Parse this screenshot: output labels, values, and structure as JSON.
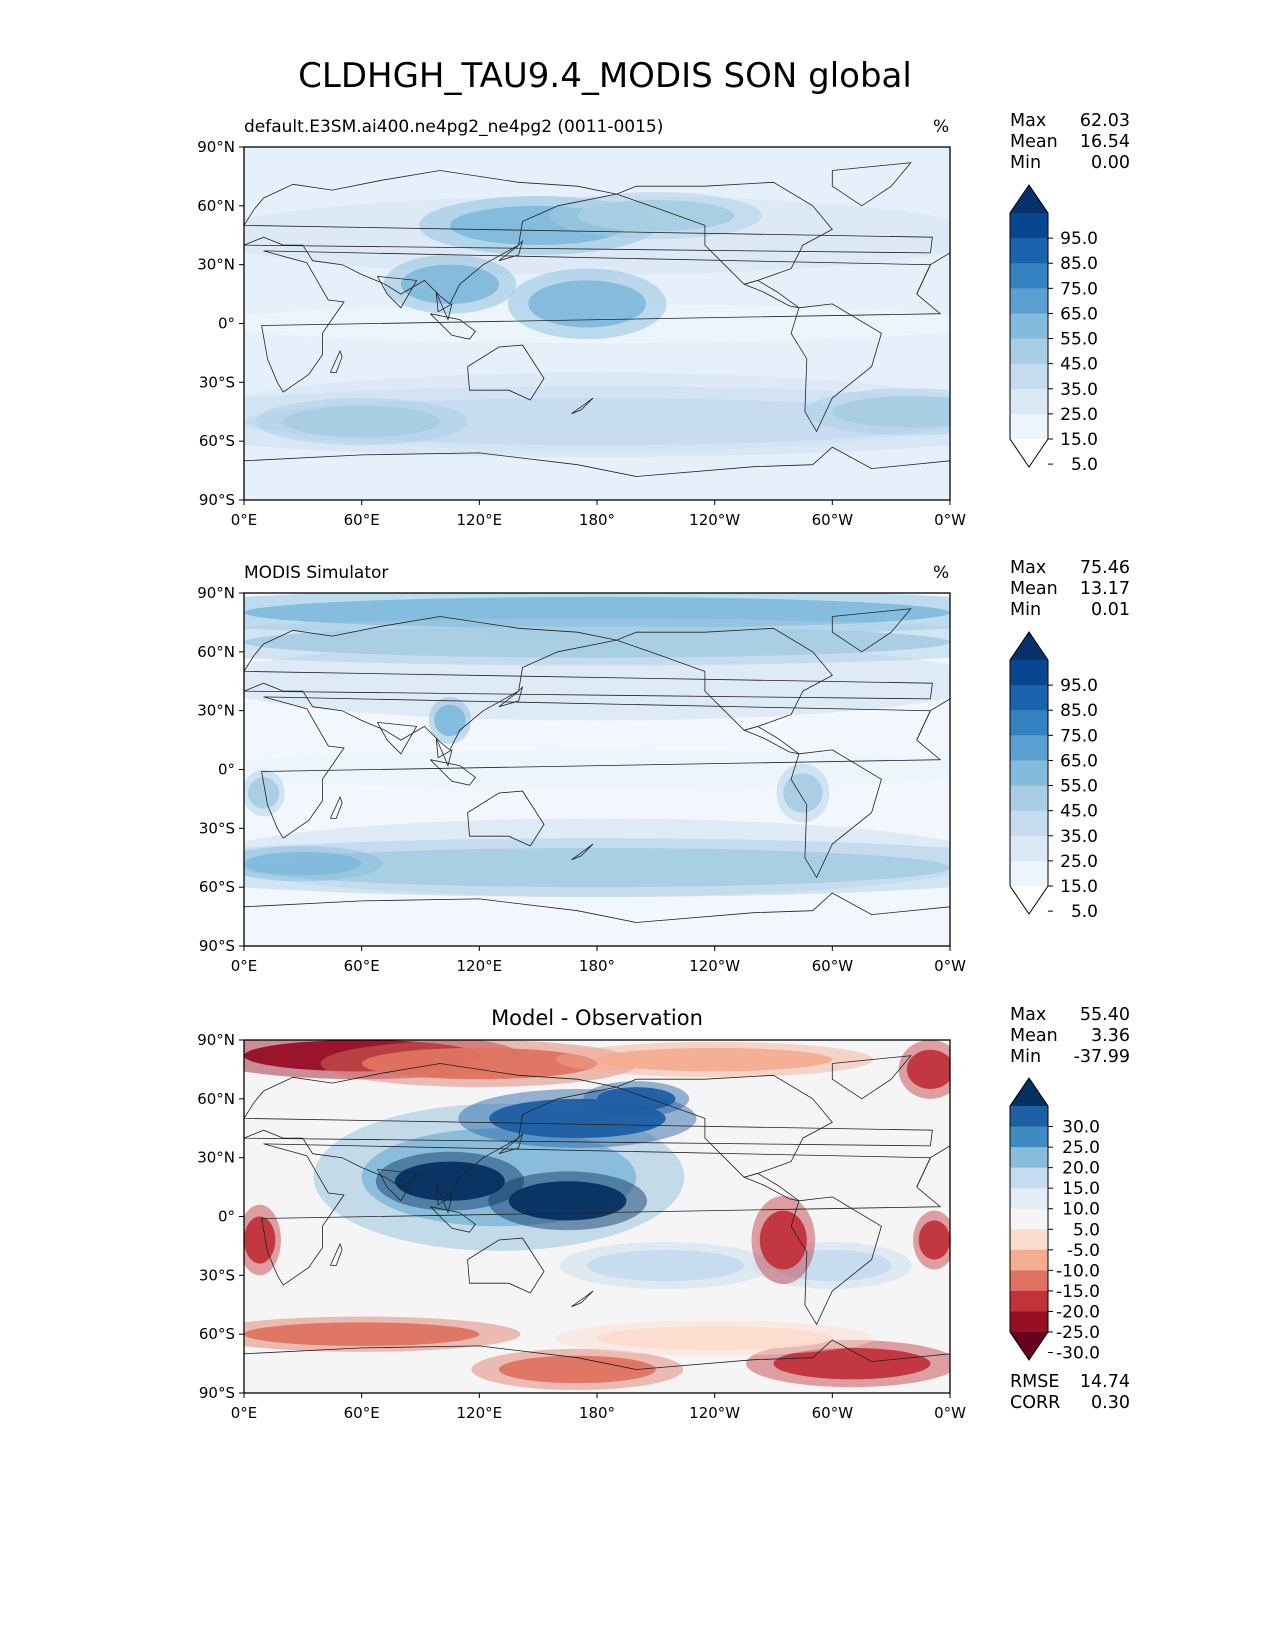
{
  "figure": {
    "title": "CLDHGH_TAU9.4_MODIS SON global"
  },
  "chart_data": [
    {
      "type": "heatmap",
      "title": "default.E3SM.ai400.ne4pg2_ne4pg2 (0011-0015)",
      "units": "%",
      "x_ticks": [
        "0°E",
        "60°E",
        "120°E",
        "180°",
        "120°W",
        "60°W",
        "0°W"
      ],
      "y_ticks": [
        "90°N",
        "60°N",
        "30°N",
        "0°",
        "30°S",
        "60°S",
        "90°S"
      ],
      "xlim": [
        0,
        360
      ],
      "ylim": [
        -90,
        90
      ],
      "stats": [
        {
          "label": "Max",
          "value": "62.03"
        },
        {
          "label": "Mean",
          "value": "16.54"
        },
        {
          "label": "Min",
          "value": "0.00"
        }
      ],
      "colorbar": {
        "labels": [
          "95.0",
          "85.0",
          "75.0",
          "65.0",
          "55.0",
          "45.0",
          "35.0",
          "25.0",
          "15.0",
          "5.0"
        ],
        "colors": [
          "#08306b",
          "#08468f",
          "#1b64ad",
          "#3481bf",
          "#5a9fd0",
          "#82bbdc",
          "#a8cde4",
          "#c6dbef",
          "#dbe8f5",
          "#ecf4fc",
          "#ffffff"
        ]
      },
      "blobs": [
        {
          "lon": 105,
          "lat": 20,
          "rx": 25,
          "ry": 10,
          "value": 45
        },
        {
          "lon": 150,
          "lat": 50,
          "rx": 45,
          "ry": 10,
          "value": 50
        },
        {
          "lon": 210,
          "lat": 55,
          "rx": 40,
          "ry": 8,
          "value": 40
        },
        {
          "lon": 175,
          "lat": 10,
          "rx": 30,
          "ry": 12,
          "value": 50
        },
        {
          "lon": 180,
          "lat": -50,
          "rx": 180,
          "ry": 12,
          "value": 30
        },
        {
          "lon": 60,
          "lat": -50,
          "rx": 40,
          "ry": 8,
          "value": 35
        },
        {
          "lon": 340,
          "lat": -45,
          "rx": 40,
          "ry": 8,
          "value": 35
        }
      ]
    },
    {
      "type": "heatmap",
      "title": "MODIS Simulator",
      "units": "%",
      "x_ticks": [
        "0°E",
        "60°E",
        "120°E",
        "180°",
        "120°W",
        "60°W",
        "0°W"
      ],
      "y_ticks": [
        "90°N",
        "60°N",
        "30°N",
        "0°",
        "30°S",
        "60°S",
        "90°S"
      ],
      "xlim": [
        0,
        360
      ],
      "ylim": [
        -90,
        90
      ],
      "stats": [
        {
          "label": "Max",
          "value": "75.46"
        },
        {
          "label": "Mean",
          "value": "13.17"
        },
        {
          "label": "Min",
          "value": "0.01"
        }
      ],
      "colorbar": {
        "labels": [
          "95.0",
          "85.0",
          "75.0",
          "65.0",
          "55.0",
          "45.0",
          "35.0",
          "25.0",
          "15.0",
          "5.0"
        ],
        "colors": [
          "#08306b",
          "#08468f",
          "#1b64ad",
          "#3481bf",
          "#5a9fd0",
          "#82bbdc",
          "#a8cde4",
          "#c6dbef",
          "#dbe8f5",
          "#ecf4fc",
          "#ffffff"
        ]
      },
      "blobs": [
        {
          "lon": 180,
          "lat": 80,
          "rx": 180,
          "ry": 8,
          "value": 45
        },
        {
          "lon": 180,
          "lat": 65,
          "rx": 180,
          "ry": 8,
          "value": 35
        },
        {
          "lon": 180,
          "lat": -50,
          "rx": 180,
          "ry": 10,
          "value": 35
        },
        {
          "lon": 30,
          "lat": -48,
          "rx": 30,
          "ry": 6,
          "value": 45
        },
        {
          "lon": 105,
          "lat": 25,
          "rx": 8,
          "ry": 8,
          "value": 45
        },
        {
          "lon": 285,
          "lat": -12,
          "rx": 10,
          "ry": 10,
          "value": 40
        },
        {
          "lon": 10,
          "lat": -12,
          "rx": 8,
          "ry": 8,
          "value": 40
        }
      ]
    },
    {
      "type": "heatmap",
      "title": "Model - Observation",
      "units": "",
      "x_ticks": [
        "0°E",
        "60°E",
        "120°E",
        "180°",
        "120°W",
        "60°W",
        "0°W"
      ],
      "y_ticks": [
        "90°N",
        "60°N",
        "30°N",
        "0°",
        "30°S",
        "60°S",
        "90°S"
      ],
      "xlim": [
        0,
        360
      ],
      "ylim": [
        -90,
        90
      ],
      "stats": [
        {
          "label": "Max",
          "value": "55.40"
        },
        {
          "label": "Mean",
          "value": "3.36"
        },
        {
          "label": "Min",
          "value": "-37.99"
        }
      ],
      "extra_stats": [
        {
          "label": "RMSE",
          "value": "14.74"
        },
        {
          "label": "CORR",
          "value": "0.30"
        }
      ],
      "colorbar": {
        "labels": [
          "30.0",
          "25.0",
          "20.0",
          "15.0",
          "10.0",
          "5.0",
          "-5.0",
          "-10.0",
          "-15.0",
          "-20.0",
          "-25.0",
          "-30.0"
        ],
        "colors": [
          "#053061",
          "#1e5ea3",
          "#3f8bc1",
          "#87bcda",
          "#c6dbef",
          "#e2edf5",
          "#f5f5f5",
          "#fcdccd",
          "#f3ad92",
          "#df7361",
          "#c1323b",
          "#970f25",
          "#67001f"
        ]
      },
      "blobs": [
        {
          "lon": 60,
          "lat": 82,
          "rx": 60,
          "ry": 8,
          "value": -30
        },
        {
          "lon": 120,
          "lat": 78,
          "rx": 60,
          "ry": 8,
          "value": -18
        },
        {
          "lon": 240,
          "lat": 80,
          "rx": 60,
          "ry": 6,
          "value": -15
        },
        {
          "lon": 350,
          "lat": 75,
          "rx": 12,
          "ry": 10,
          "value": -25
        },
        {
          "lon": 130,
          "lat": 20,
          "rx": 70,
          "ry": 25,
          "value": 15
        },
        {
          "lon": 170,
          "lat": 50,
          "rx": 45,
          "ry": 10,
          "value": 28
        },
        {
          "lon": 200,
          "lat": 60,
          "rx": 20,
          "ry": 6,
          "value": 28
        },
        {
          "lon": 105,
          "lat": 18,
          "rx": 28,
          "ry": 10,
          "value": 30
        },
        {
          "lon": 165,
          "lat": 8,
          "rx": 30,
          "ry": 10,
          "value": 32
        },
        {
          "lon": 215,
          "lat": -25,
          "rx": 40,
          "ry": 8,
          "value": 10
        },
        {
          "lon": 300,
          "lat": -25,
          "rx": 30,
          "ry": 8,
          "value": 12
        },
        {
          "lon": 275,
          "lat": -12,
          "rx": 12,
          "ry": 15,
          "value": -25
        },
        {
          "lon": 8,
          "lat": -12,
          "rx": 8,
          "ry": 12,
          "value": -22
        },
        {
          "lon": 352,
          "lat": -12,
          "rx": 8,
          "ry": 10,
          "value": -22
        },
        {
          "lon": 60,
          "lat": -60,
          "rx": 60,
          "ry": 6,
          "value": -18
        },
        {
          "lon": 170,
          "lat": -78,
          "rx": 40,
          "ry": 7,
          "value": -20
        },
        {
          "lon": 310,
          "lat": -75,
          "rx": 40,
          "ry": 8,
          "value": -22
        },
        {
          "lon": 240,
          "lat": -62,
          "rx": 60,
          "ry": 6,
          "value": -8
        }
      ]
    }
  ]
}
